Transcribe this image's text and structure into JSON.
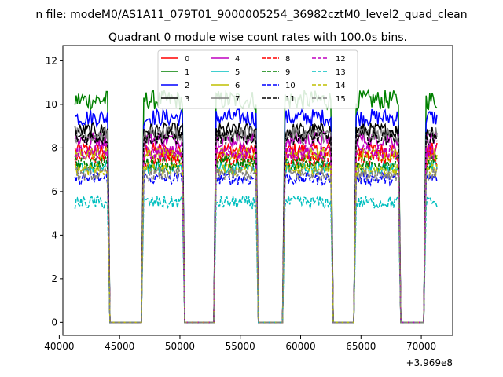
{
  "figure": {
    "suptitle": "n file: modeM0/AS1A11_079T01_9000005254_36982cztM0_level2_quad_clean",
    "title": "Quadrant 0 module wise count rates with 100.0s bins."
  },
  "chart_data": {
    "type": "line",
    "title": "Quadrant 0 module wise count rates with 100.0s bins.",
    "xlabel": "",
    "ylabel": "",
    "x_offset_label": "+3.969e8",
    "xlim": [
      40300,
      72600
    ],
    "ylim": [
      -0.6,
      12.7
    ],
    "x_ticks": [
      40000,
      45000,
      50000,
      55000,
      60000,
      65000,
      70000
    ],
    "x_tick_labels": [
      "40000",
      "45000",
      "50000",
      "55000",
      "60000",
      "65000",
      "70000"
    ],
    "y_ticks": [
      0,
      2,
      4,
      6,
      8,
      10,
      12
    ],
    "y_tick_labels": [
      "0",
      "2",
      "4",
      "6",
      "8",
      "10",
      "12"
    ],
    "grid": false,
    "legend": {
      "placement": "top-center",
      "columns": 4
    },
    "x_units_note": "seconds, offset +3.969e8",
    "on_segments": [
      [
        41300,
        44000
      ],
      [
        47000,
        50200
      ],
      [
        53000,
        56300
      ],
      [
        58700,
        62500
      ],
      [
        64600,
        68100
      ],
      [
        70400,
        71300
      ]
    ],
    "off_segments": [
      [
        44200,
        46800
      ],
      [
        50400,
        52800
      ],
      [
        56500,
        58500
      ],
      [
        62700,
        64400
      ],
      [
        68300,
        70200
      ]
    ],
    "series": [
      {
        "name": "0",
        "color": "#ff0000",
        "dash": "solid",
        "level": 7.9,
        "noise": 0.35
      },
      {
        "name": "1",
        "color": "#008000",
        "dash": "solid",
        "level": 10.2,
        "noise": 0.45
      },
      {
        "name": "2",
        "color": "#0000ff",
        "dash": "solid",
        "level": 9.4,
        "noise": 0.4
      },
      {
        "name": "3",
        "color": "#000000",
        "dash": "solid",
        "level": 8.8,
        "noise": 0.35
      },
      {
        "name": "4",
        "color": "#bf00bf",
        "dash": "solid",
        "level": 8.4,
        "noise": 0.35
      },
      {
        "name": "5",
        "color": "#00bfbf",
        "dash": "solid",
        "level": 7.1,
        "noise": 0.3
      },
      {
        "name": "6",
        "color": "#bfbf00",
        "dash": "solid",
        "level": 7.7,
        "noise": 0.3
      },
      {
        "name": "7",
        "color": "#808080",
        "dash": "solid",
        "level": 8.6,
        "noise": 0.35
      },
      {
        "name": "8",
        "color": "#ff0000",
        "dash": "dashed",
        "level": 7.5,
        "noise": 0.35
      },
      {
        "name": "9",
        "color": "#008000",
        "dash": "dashed",
        "level": 7.3,
        "noise": 0.35
      },
      {
        "name": "10",
        "color": "#0000ff",
        "dash": "dashed",
        "level": 6.6,
        "noise": 0.3
      },
      {
        "name": "11",
        "color": "#000000",
        "dash": "dashed",
        "level": 8.5,
        "noise": 0.35
      },
      {
        "name": "12",
        "color": "#bf00bf",
        "dash": "dashed",
        "level": 7.8,
        "noise": 0.35
      },
      {
        "name": "13",
        "color": "#00bfbf",
        "dash": "dashed",
        "level": 5.5,
        "noise": 0.3
      },
      {
        "name": "14",
        "color": "#bfbf00",
        "dash": "dashed",
        "level": 7.0,
        "noise": 0.3
      },
      {
        "name": "15",
        "color": "#808080",
        "dash": "dashed",
        "level": 6.8,
        "noise": 0.3
      }
    ]
  }
}
